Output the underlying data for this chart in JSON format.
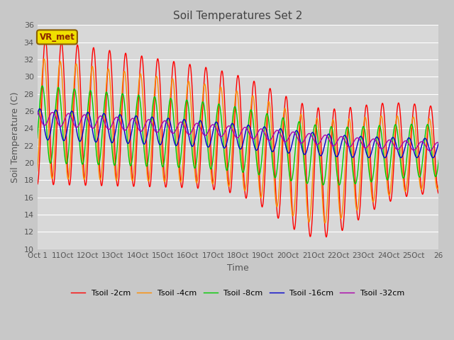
{
  "title": "Soil Temperatures Set 2",
  "xlabel": "Time",
  "ylabel": "Soil Temperature (C)",
  "ylim": [
    10,
    36
  ],
  "yticks": [
    10,
    12,
    14,
    16,
    18,
    20,
    22,
    24,
    26,
    28,
    30,
    32,
    34,
    36
  ],
  "fig_color": "#c8c8c8",
  "plot_bg": "#d8d8d8",
  "grid_color": "#ffffff",
  "annotation_text": "VR_met",
  "annotation_fg": "#8B2500",
  "annotation_bg": "#f0e000",
  "annotation_edge": "#8B6000",
  "series": [
    {
      "label": "Tsoil -2cm",
      "color": "#ff0000"
    },
    {
      "label": "Tsoil -4cm",
      "color": "#ff8c00"
    },
    {
      "label": "Tsoil -8cm",
      "color": "#00cc00"
    },
    {
      "label": "Tsoil -16cm",
      "color": "#0000cc"
    },
    {
      "label": "Tsoil -32cm",
      "color": "#aa00aa"
    }
  ],
  "xtick_labels": [
    "Oct 1",
    "11Oct",
    "12Oct",
    "13Oct",
    "14Oct",
    "15Oct",
    "16Oct",
    "17Oct",
    "18Oct",
    "19Oct",
    "20Oct",
    "21Oct",
    "22Oct",
    "23Oct",
    "24Oct",
    "25Oct",
    "26"
  ],
  "n_days": 25,
  "pts_per_day": 48
}
